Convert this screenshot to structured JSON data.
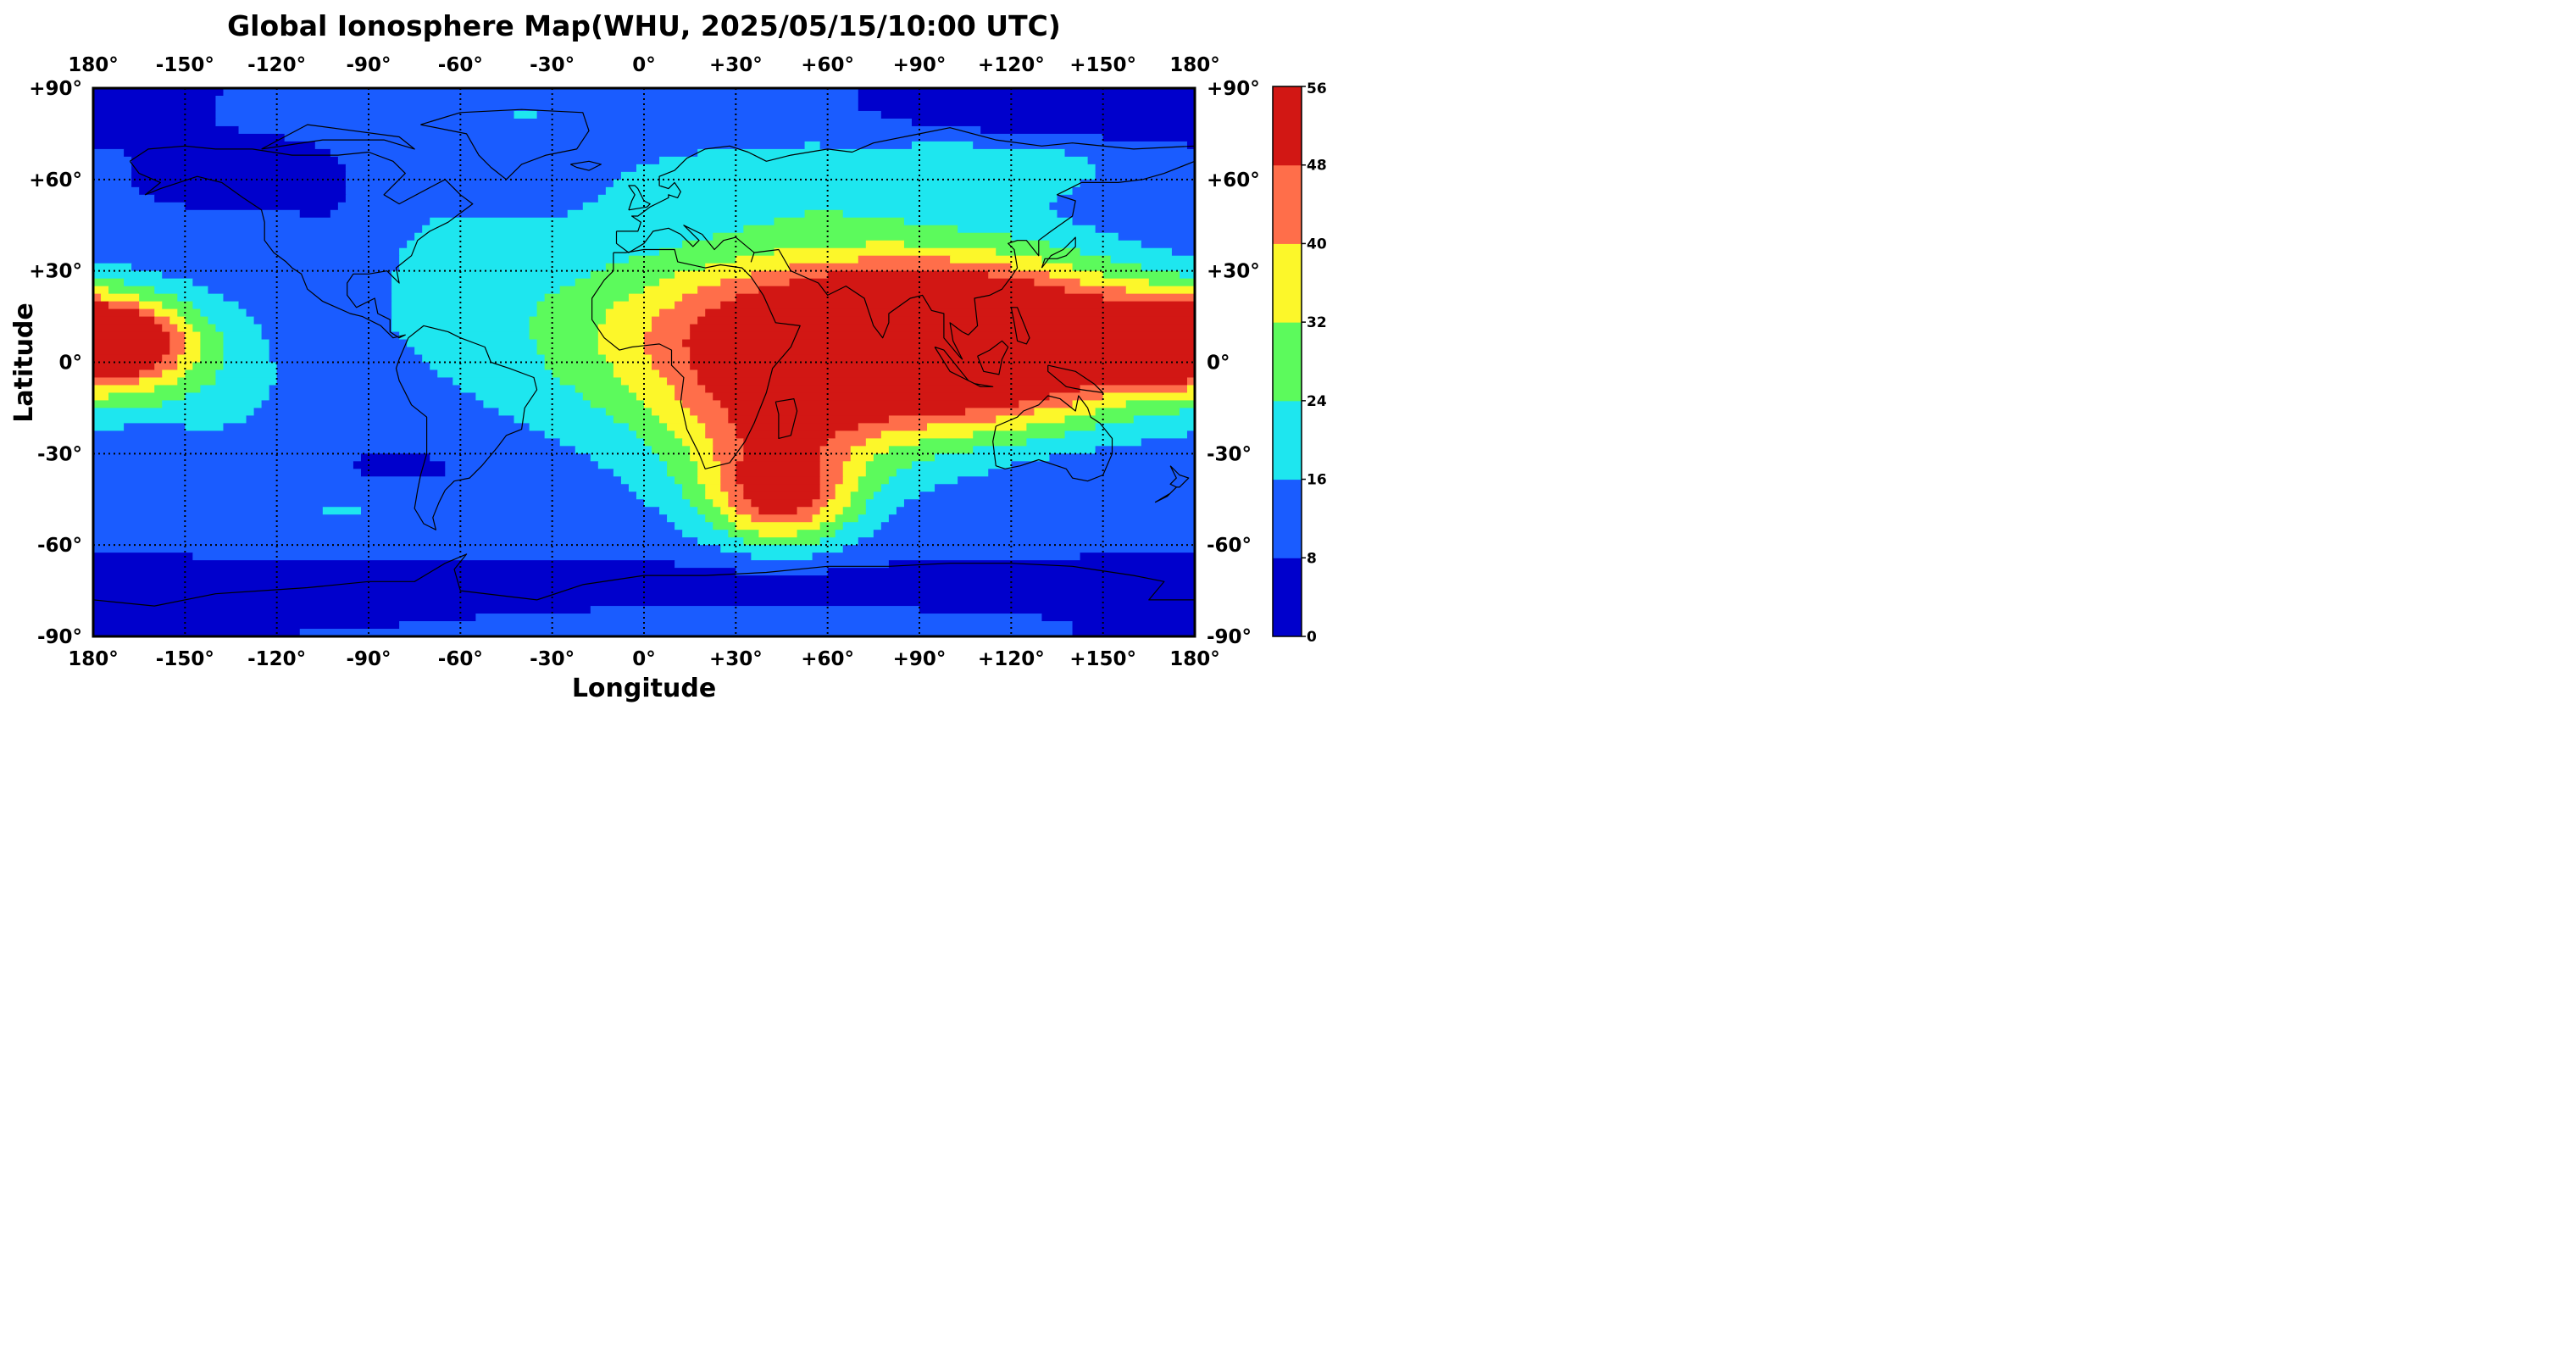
{
  "chart_data": {
    "type": "heatmap",
    "title": "Global Ionosphere Map(WHU, 2025/05/15/10:00 UTC)",
    "xlabel": "Longitude",
    "ylabel": "Latitude",
    "xlim": [
      -180,
      180
    ],
    "ylim": [
      -90,
      90
    ],
    "x_ticks": [
      {
        "value": -180,
        "label": "180°"
      },
      {
        "value": -150,
        "label": "-150°"
      },
      {
        "value": -120,
        "label": "-120°"
      },
      {
        "value": -90,
        "label": "-90°"
      },
      {
        "value": -60,
        "label": "-60°"
      },
      {
        "value": -30,
        "label": "-30°"
      },
      {
        "value": 0,
        "label": "0°"
      },
      {
        "value": 30,
        "label": "+30°"
      },
      {
        "value": 60,
        "label": "+60°"
      },
      {
        "value": 90,
        "label": "+90°"
      },
      {
        "value": 120,
        "label": "+120°"
      },
      {
        "value": 150,
        "label": "+150°"
      },
      {
        "value": 180,
        "label": "180°"
      }
    ],
    "y_ticks": [
      {
        "value": 90,
        "label": "+90°"
      },
      {
        "value": 60,
        "label": "+60°"
      },
      {
        "value": 30,
        "label": "+30°"
      },
      {
        "value": 0,
        "label": "0°"
      },
      {
        "value": -30,
        "label": "-30°"
      },
      {
        "value": -60,
        "label": "-60°"
      },
      {
        "value": -90,
        "label": "-90°"
      }
    ],
    "grid": true,
    "colorbar": {
      "levels": [
        0,
        8,
        16,
        24,
        32,
        40,
        48,
        56
      ],
      "labels": [
        "0",
        "8",
        "16",
        "24",
        "32",
        "40",
        "48",
        "56"
      ],
      "colors": [
        "#0000cc",
        "#1a5cff",
        "#1ee6ef",
        "#5cfa5c",
        "#fcf72a",
        "#ff6e4a",
        "#d21714"
      ]
    },
    "tec_regions": [
      {
        "lon": 0,
        "lat": 0,
        "sx": 360,
        "sy": 180,
        "value": 12
      },
      {
        "lon": 62,
        "lat": 8,
        "sx": 82,
        "sy": 30,
        "value": 46
      },
      {
        "lon": 110,
        "lat": 6,
        "sx": 55,
        "sy": 24,
        "value": 44
      },
      {
        "lon": 45,
        "lat": -45,
        "sx": 22,
        "sy": 15,
        "value": 30
      },
      {
        "lon": 42,
        "lat": -28,
        "sx": 35,
        "sy": 24,
        "value": 22
      },
      {
        "lon": -175,
        "lat": 7,
        "sx": 28,
        "sy": 14,
        "value": 46
      },
      {
        "lon": 165,
        "lat": 8,
        "sx": 30,
        "sy": 16,
        "value": 14
      },
      {
        "lon": 50,
        "lat": 60,
        "sx": 60,
        "sy": 14,
        "value": 10
      },
      {
        "lon": 120,
        "lat": 65,
        "sx": 40,
        "sy": 10,
        "value": 10
      },
      {
        "lon": -40,
        "lat": 82,
        "sx": 45,
        "sy": 8,
        "value": 6
      },
      {
        "lon": -80,
        "lat": 35,
        "sx": 50,
        "sy": 30,
        "value": 6
      },
      {
        "lon": -150,
        "lat": -10,
        "sx": 35,
        "sy": 20,
        "value": 8
      },
      {
        "lon": -100,
        "lat": -48,
        "sx": 35,
        "sy": 10,
        "value": 6
      },
      {
        "lon": -130,
        "lat": 60,
        "sx": 30,
        "sy": 12,
        "value": -6
      },
      {
        "lon": 130,
        "lat": 82,
        "sx": 50,
        "sy": 10,
        "value": -8
      },
      {
        "lon": -80,
        "lat": -35,
        "sx": 25,
        "sy": 8,
        "value": -6
      },
      {
        "lon": -160,
        "lat": -25,
        "sx": 10,
        "sy": 6,
        "value": -6
      },
      {
        "lon": -100,
        "lat": 40,
        "sx": 20,
        "sy": 25,
        "value": -6
      },
      {
        "lon": 0,
        "lat": -72,
        "sx": 180,
        "sy": 8,
        "value": -6
      },
      {
        "lon": -120,
        "lat": -80,
        "sx": 60,
        "sy": 6,
        "value": -4
      },
      {
        "lon": 140,
        "lat": -38,
        "sx": 20,
        "sy": 8,
        "value": -4
      }
    ]
  }
}
